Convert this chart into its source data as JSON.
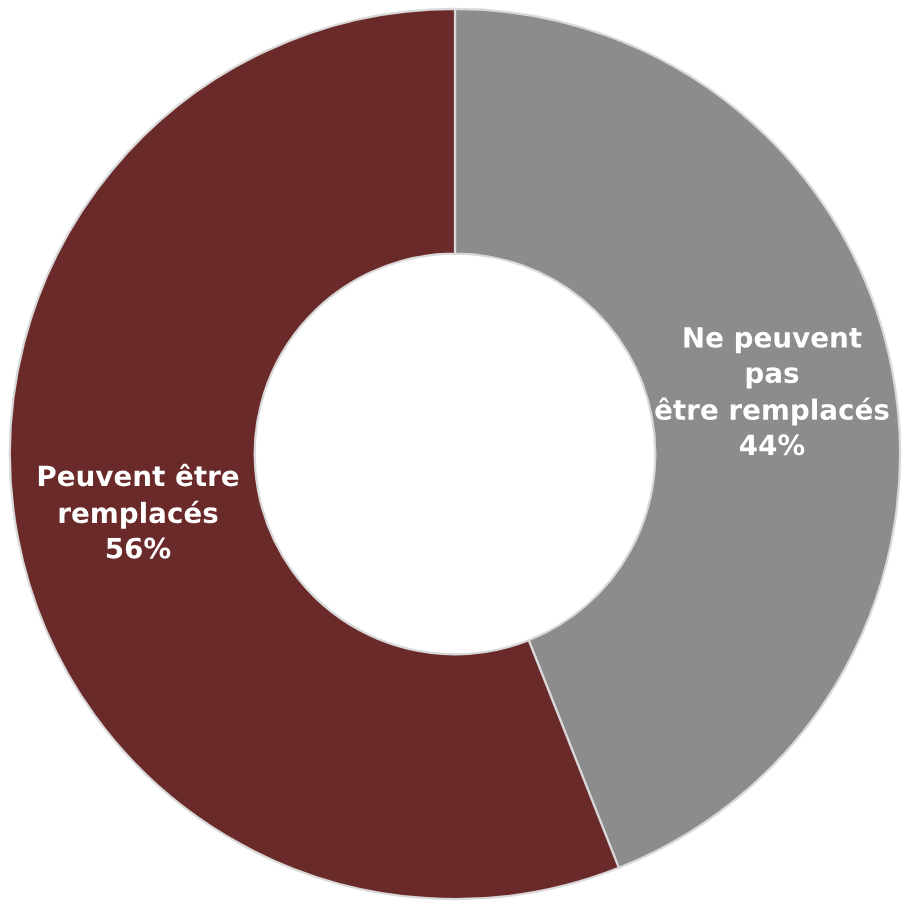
{
  "chart_data": {
    "type": "donut",
    "categories": [
      "Ne peuvent\npas\nêtre remplacés",
      "Peuvent être\nremplacés"
    ],
    "values": [
      44,
      56
    ],
    "colors": [
      "#8c8c8c",
      "#6b2a2a"
    ],
    "value_labels": [
      "44%",
      "56%"
    ],
    "legend": false
  }
}
